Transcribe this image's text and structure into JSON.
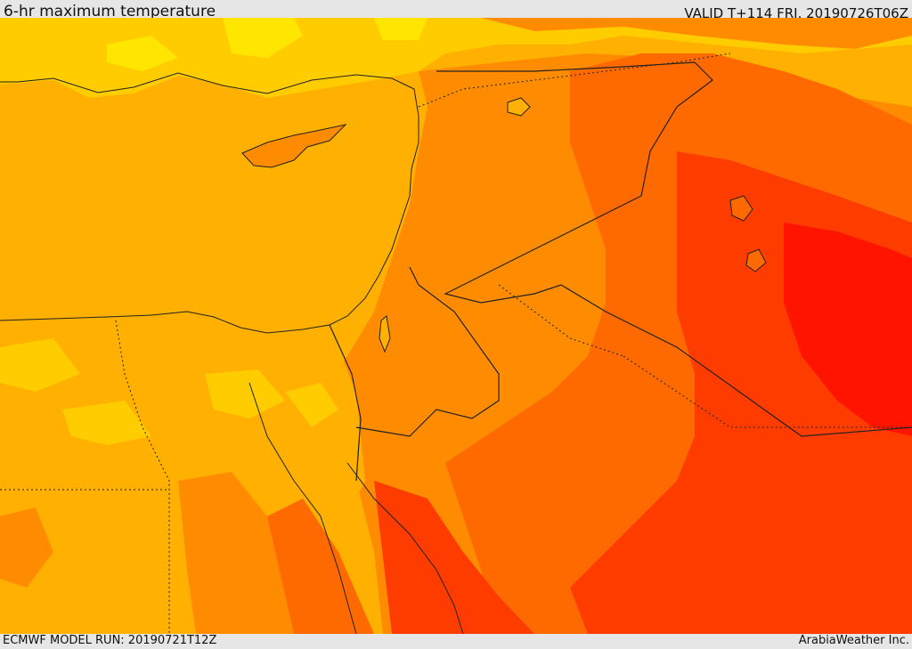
{
  "header": {
    "title": "6-hr maximum temperature",
    "valid_time": "VALID T+114 FRI. 20190726T06Z"
  },
  "footer": {
    "model_run": "ECMWF MODEL RUN: 20190721T12Z",
    "credit": "ArabiaWeather Inc."
  },
  "map": {
    "region": "Eastern Mediterranean and Middle East",
    "field": "6-hr maximum temperature",
    "colors": {
      "coolest": "#ffe600",
      "cool": "#ffcc00",
      "mild": "#ffb000",
      "warm": "#ff8c00",
      "hot": "#ff6a00",
      "hotter": "#ff3c00",
      "hottest": "#ff1400"
    }
  }
}
